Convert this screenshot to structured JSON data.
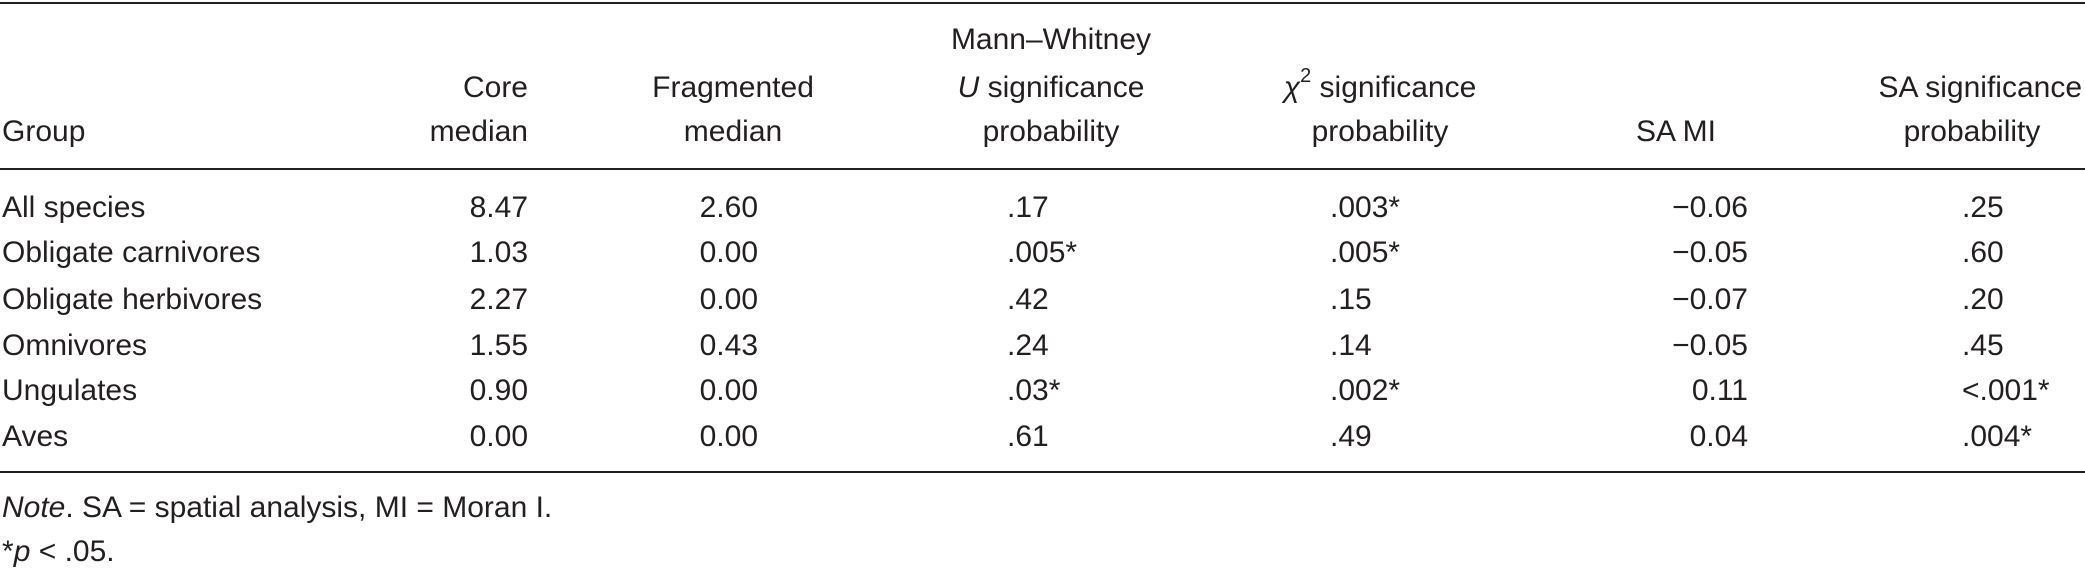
{
  "table": {
    "headers": [
      [
        "Group"
      ],
      [
        "Core",
        "median"
      ],
      [
        "Fragmented",
        "median"
      ],
      [
        "Mann–Whitney",
        "U",
        "significance",
        "probability"
      ],
      [
        "χ",
        "2",
        "significance",
        "probability"
      ],
      [
        "SA MI"
      ],
      [
        "SA significance",
        "probability"
      ]
    ],
    "rows": [
      [
        "All species",
        "8.47",
        "2.60",
        ".17",
        ".003*",
        "−0.06",
        ".25"
      ],
      [
        "Obligate carnivores",
        "1.03",
        "0.00",
        ".005*",
        ".005*",
        "−0.05",
        ".60"
      ],
      [
        "Obligate herbivores",
        "2.27",
        "0.00",
        ".42",
        ".15",
        "−0.07",
        ".20"
      ],
      [
        "Omnivores",
        "1.55",
        "0.43",
        ".24",
        ".14",
        "−0.05",
        ".45"
      ],
      [
        "Ungulates",
        "0.90",
        "0.00",
        ".03*",
        ".002*",
        "0.11",
        "<.001*"
      ],
      [
        "Aves",
        "0.00",
        "0.00",
        ".61",
        ".49",
        "0.04",
        ".004*"
      ]
    ]
  },
  "note": {
    "label": "Note",
    "text": ". SA = spatial analysis, MI = Moran I."
  },
  "footnote": {
    "marker": "*",
    "p": "p",
    "text": " < .05."
  }
}
